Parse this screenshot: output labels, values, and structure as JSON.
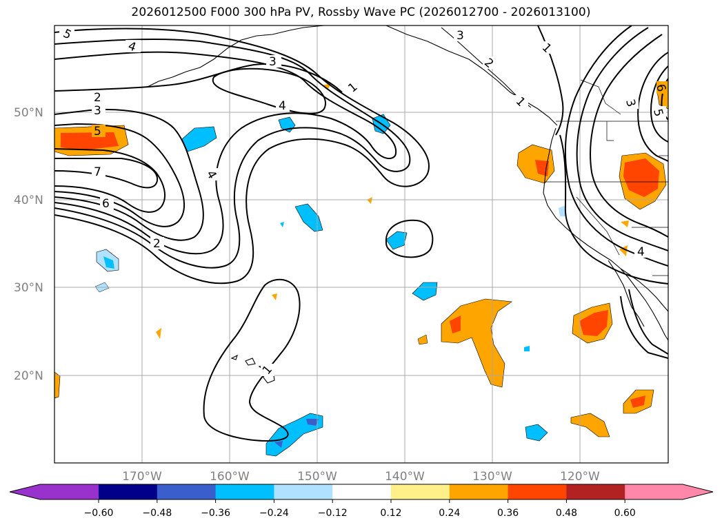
{
  "title": "2026012500 F000 300 hPa PV, Rossby Wave PC (2026012700 - 2026013100)",
  "map": {
    "lon_labels": [
      "170°W",
      "160°W",
      "150°W",
      "140°W",
      "130°W",
      "120°W"
    ],
    "lat_labels": [
      "50°N",
      "40°N",
      "30°N",
      "20°N"
    ],
    "contour_labels": [
      "5",
      "4",
      "3",
      "2",
      "3",
      "4",
      "5",
      "7",
      "6",
      "4",
      "2",
      "3",
      "1",
      "1",
      "2",
      "1",
      "1",
      "3",
      "5",
      "6",
      "4"
    ]
  },
  "colorbar": {
    "ticks": [
      "−0.60",
      "−0.48",
      "−0.36",
      "−0.24",
      "−0.12",
      "0.12",
      "0.24",
      "0.36",
      "0.48",
      "0.60"
    ],
    "colors": [
      "#9932cc",
      "#00008b",
      "#3a5fcd",
      "#00bfff",
      "#b0e2ff",
      "#ffffff",
      "#fff08a",
      "#ffa500",
      "#ff4500",
      "#b22222",
      "#ff88aa"
    ]
  }
}
